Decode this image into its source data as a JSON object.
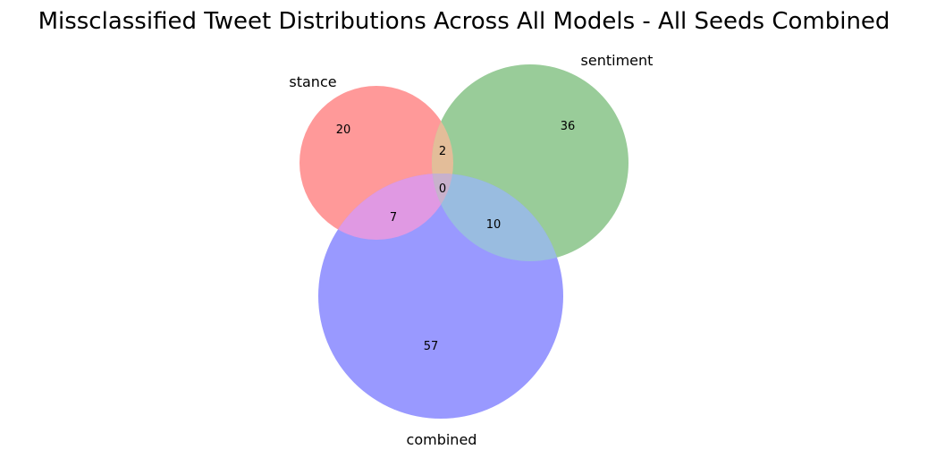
{
  "chart_data": {
    "type": "venn",
    "title": "Missclassified Tweet Distributions Across All Models - All Seeds Combined",
    "sets": [
      {
        "name": "stance",
        "color": "#ff0000"
      },
      {
        "name": "sentiment",
        "color": "#008000"
      },
      {
        "name": "combined",
        "color": "#0000ff"
      }
    ],
    "regions": [
      {
        "id": "stance_only",
        "sets": [
          "stance"
        ],
        "value": "20"
      },
      {
        "id": "sentiment_only",
        "sets": [
          "sentiment"
        ],
        "value": "36"
      },
      {
        "id": "combined_only",
        "sets": [
          "combined"
        ],
        "value": "57"
      },
      {
        "id": "stance_sentiment",
        "sets": [
          "stance",
          "sentiment"
        ],
        "value": "2"
      },
      {
        "id": "stance_combined",
        "sets": [
          "stance",
          "combined"
        ],
        "value": "7"
      },
      {
        "id": "sentiment_combined",
        "sets": [
          "sentiment",
          "combined"
        ],
        "value": "10"
      },
      {
        "id": "all_three",
        "sets": [
          "stance",
          "sentiment",
          "combined"
        ],
        "value": "0"
      }
    ]
  }
}
